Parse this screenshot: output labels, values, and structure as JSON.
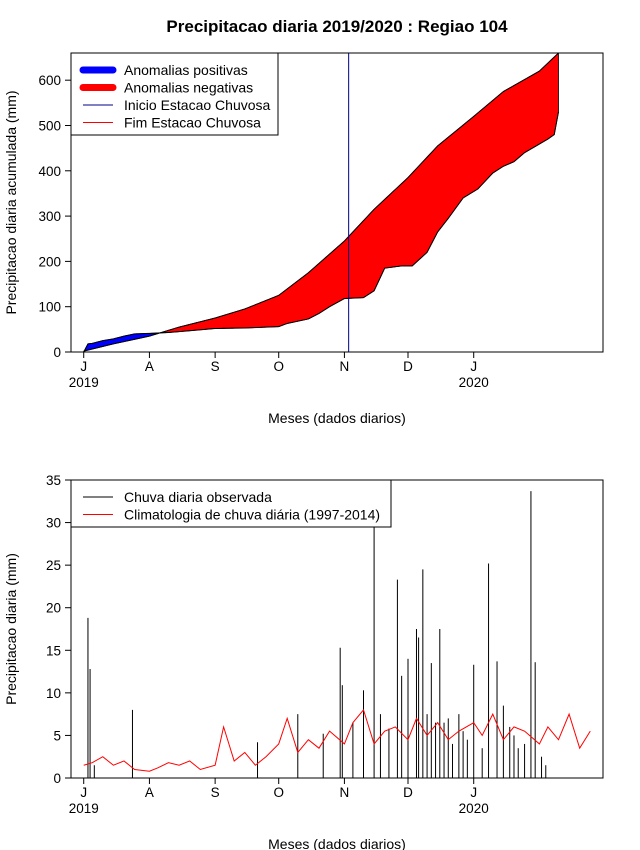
{
  "title": "Precipitacao diaria 2019/2020 : Regiao 104",
  "colors": {
    "positive": "#0000ff",
    "negative": "#ff0000",
    "onset_line": "#00008b",
    "observed_bars": "#000000",
    "climatology_line": "#ff0000"
  },
  "chart_data": [
    {
      "type": "area",
      "title": "Precipitacao diaria 2019/2020 : Regiao 104",
      "xlabel": "Meses (dados diarios)",
      "ylabel": "Precipitacao diaria acumulada (mm)",
      "xlim": [
        "2019-06-25",
        "2020-03-02"
      ],
      "ylim": [
        0,
        660
      ],
      "yticks": [
        0,
        100,
        200,
        300,
        400,
        500,
        600
      ],
      "month_ticks": [
        {
          "date": "2019-07-01",
          "label": "J",
          "year": "2019"
        },
        {
          "date": "2019-08-01",
          "label": "A",
          "year": ""
        },
        {
          "date": "2019-09-01",
          "label": "S",
          "year": ""
        },
        {
          "date": "2019-10-01",
          "label": "O",
          "year": ""
        },
        {
          "date": "2019-11-01",
          "label": "N",
          "year": ""
        },
        {
          "date": "2019-12-01",
          "label": "D",
          "year": ""
        },
        {
          "date": "2020-01-01",
          "label": "J",
          "year": "2020"
        }
      ],
      "legend_position": "top-left",
      "legend": [
        {
          "label": "Anomalias positivas",
          "style": "thick",
          "color": "#0000ff"
        },
        {
          "label": "Anomalias negativas",
          "style": "thick",
          "color": "#ff0000"
        },
        {
          "label": "Inicio Estacao Chuvosa",
          "style": "thin",
          "color": "#00008b"
        },
        {
          "label": "Fim Estacao Chuvosa",
          "style": "thin",
          "color": "#ff0000"
        }
      ],
      "onset_date": "2019-11-03",
      "series": [
        {
          "name": "Chuva diaria observada",
          "x": [
            "2019-07-01",
            "2019-07-03",
            "2019-07-05",
            "2019-07-10",
            "2019-07-15",
            "2019-07-20",
            "2019-07-25",
            "2019-08-01",
            "2019-08-10",
            "2019-08-20",
            "2019-09-01",
            "2019-09-15",
            "2019-10-01",
            "2019-10-05",
            "2019-10-15",
            "2019-10-20",
            "2019-10-25",
            "2019-11-01",
            "2019-11-10",
            "2019-11-15",
            "2019-11-20",
            "2019-11-28",
            "2019-12-03",
            "2019-12-10",
            "2019-12-15",
            "2019-12-20",
            "2019-12-27",
            "2020-01-03",
            "2020-01-10",
            "2020-01-15",
            "2020-01-20",
            "2020-01-25",
            "2020-02-05",
            "2020-02-08",
            "2020-02-10"
          ],
          "values": [
            0,
            18,
            19,
            25,
            29,
            35,
            40,
            41,
            43,
            47,
            52,
            53,
            56,
            63,
            73,
            85,
            100,
            118,
            120,
            135,
            185,
            190,
            190,
            220,
            265,
            295,
            340,
            360,
            395,
            410,
            420,
            440,
            470,
            480,
            530
          ]
        },
        {
          "name": "Climatologia de chuva diária (1997-2014)",
          "x": [
            "2019-07-01",
            "2019-07-15",
            "2019-08-01",
            "2019-08-15",
            "2019-09-01",
            "2019-09-15",
            "2019-10-01",
            "2019-10-15",
            "2019-11-01",
            "2019-11-15",
            "2019-12-01",
            "2019-12-15",
            "2020-01-01",
            "2020-01-15",
            "2020-02-01",
            "2020-02-10"
          ],
          "values": [
            2,
            18,
            35,
            55,
            75,
            95,
            125,
            175,
            245,
            315,
            385,
            455,
            520,
            575,
            620,
            660
          ]
        }
      ]
    },
    {
      "type": "bar",
      "xlabel": "Meses (dados diarios)",
      "ylabel": "Precipitacao diaria (mm)",
      "xlim": [
        "2019-06-25",
        "2020-03-02"
      ],
      "ylim": [
        0,
        35
      ],
      "yticks": [
        0,
        5,
        10,
        15,
        20,
        25,
        30,
        35
      ],
      "month_ticks": [
        {
          "date": "2019-07-01",
          "label": "J",
          "year": "2019"
        },
        {
          "date": "2019-08-01",
          "label": "A",
          "year": ""
        },
        {
          "date": "2019-09-01",
          "label": "S",
          "year": ""
        },
        {
          "date": "2019-10-01",
          "label": "O",
          "year": ""
        },
        {
          "date": "2019-11-01",
          "label": "N",
          "year": ""
        },
        {
          "date": "2019-12-01",
          "label": "D",
          "year": ""
        },
        {
          "date": "2020-01-01",
          "label": "J",
          "year": "2020"
        }
      ],
      "legend_position": "top-left",
      "legend": [
        {
          "label": "Chuva diaria observada",
          "style": "thin",
          "color": "#000000"
        },
        {
          "label": "Climatologia de chuva diária (1997-2014)",
          "style": "thin",
          "color": "#ff0000"
        }
      ],
      "series": [
        {
          "name": "Chuva diaria observada",
          "type": "bar",
          "x": [
            "2019-07-03",
            "2019-07-04",
            "2019-07-06",
            "2019-07-24",
            "2019-09-21",
            "2019-10-10",
            "2019-10-22",
            "2019-10-30",
            "2019-10-31",
            "2019-11-05",
            "2019-11-10",
            "2019-11-15",
            "2019-11-18",
            "2019-11-22",
            "2019-11-26",
            "2019-11-28",
            "2019-12-01",
            "2019-12-05",
            "2019-12-06",
            "2019-12-08",
            "2019-12-10",
            "2019-12-12",
            "2019-12-14",
            "2019-12-16",
            "2019-12-18",
            "2019-12-20",
            "2019-12-22",
            "2019-12-25",
            "2019-12-27",
            "2019-12-29",
            "2020-01-01",
            "2020-01-05",
            "2020-01-08",
            "2020-01-12",
            "2020-01-15",
            "2020-01-18",
            "2020-01-20",
            "2020-01-22",
            "2020-01-25",
            "2020-01-28",
            "2020-01-30",
            "2020-02-02",
            "2020-02-04"
          ],
          "values": [
            18.8,
            12.8,
            1.5,
            8.0,
            4.2,
            7.5,
            5.2,
            15.3,
            10.9,
            6.5,
            10.3,
            33.8,
            7.5,
            5.8,
            23.3,
            12.0,
            14.0,
            17.5,
            16.5,
            24.5,
            7.5,
            13.5,
            6.5,
            17.5,
            6.5,
            7.0,
            4.0,
            7.5,
            5.5,
            4.5,
            13.3,
            3.5,
            25.2,
            13.7,
            8.5,
            6.0,
            5.0,
            3.5,
            4.0,
            33.7,
            13.6,
            2.5,
            1.5
          ]
        },
        {
          "name": "Climatologia de chuva diária (1997-2014)",
          "type": "line",
          "x": [
            "2019-07-01",
            "2019-07-05",
            "2019-07-10",
            "2019-07-15",
            "2019-07-20",
            "2019-07-25",
            "2019-08-01",
            "2019-08-05",
            "2019-08-10",
            "2019-08-15",
            "2019-08-20",
            "2019-08-25",
            "2019-09-01",
            "2019-09-05",
            "2019-09-10",
            "2019-09-15",
            "2019-09-20",
            "2019-09-25",
            "2019-10-01",
            "2019-10-05",
            "2019-10-10",
            "2019-10-15",
            "2019-10-20",
            "2019-10-25",
            "2019-11-01",
            "2019-11-05",
            "2019-11-10",
            "2019-11-15",
            "2019-11-20",
            "2019-11-25",
            "2019-12-01",
            "2019-12-05",
            "2019-12-10",
            "2019-12-15",
            "2019-12-20",
            "2019-12-25",
            "2020-01-01",
            "2020-01-05",
            "2020-01-10",
            "2020-01-15",
            "2020-01-20",
            "2020-01-25",
            "2020-02-01",
            "2020-02-05",
            "2020-02-10",
            "2020-02-15",
            "2020-02-20",
            "2020-02-25"
          ],
          "values": [
            1.5,
            1.8,
            2.5,
            1.5,
            2.0,
            1.0,
            0.8,
            1.2,
            1.8,
            1.5,
            2.0,
            1.0,
            1.5,
            6.0,
            2.0,
            3.0,
            1.5,
            2.5,
            4.0,
            7.0,
            3.0,
            4.5,
            3.5,
            5.5,
            4.0,
            6.5,
            8.0,
            4.0,
            5.5,
            6.0,
            4.5,
            7.0,
            5.0,
            6.5,
            4.5,
            5.5,
            6.5,
            5.0,
            7.5,
            4.5,
            6.0,
            5.5,
            4.0,
            6.0,
            4.5,
            7.5,
            3.5,
            5.5
          ]
        }
      ]
    }
  ]
}
